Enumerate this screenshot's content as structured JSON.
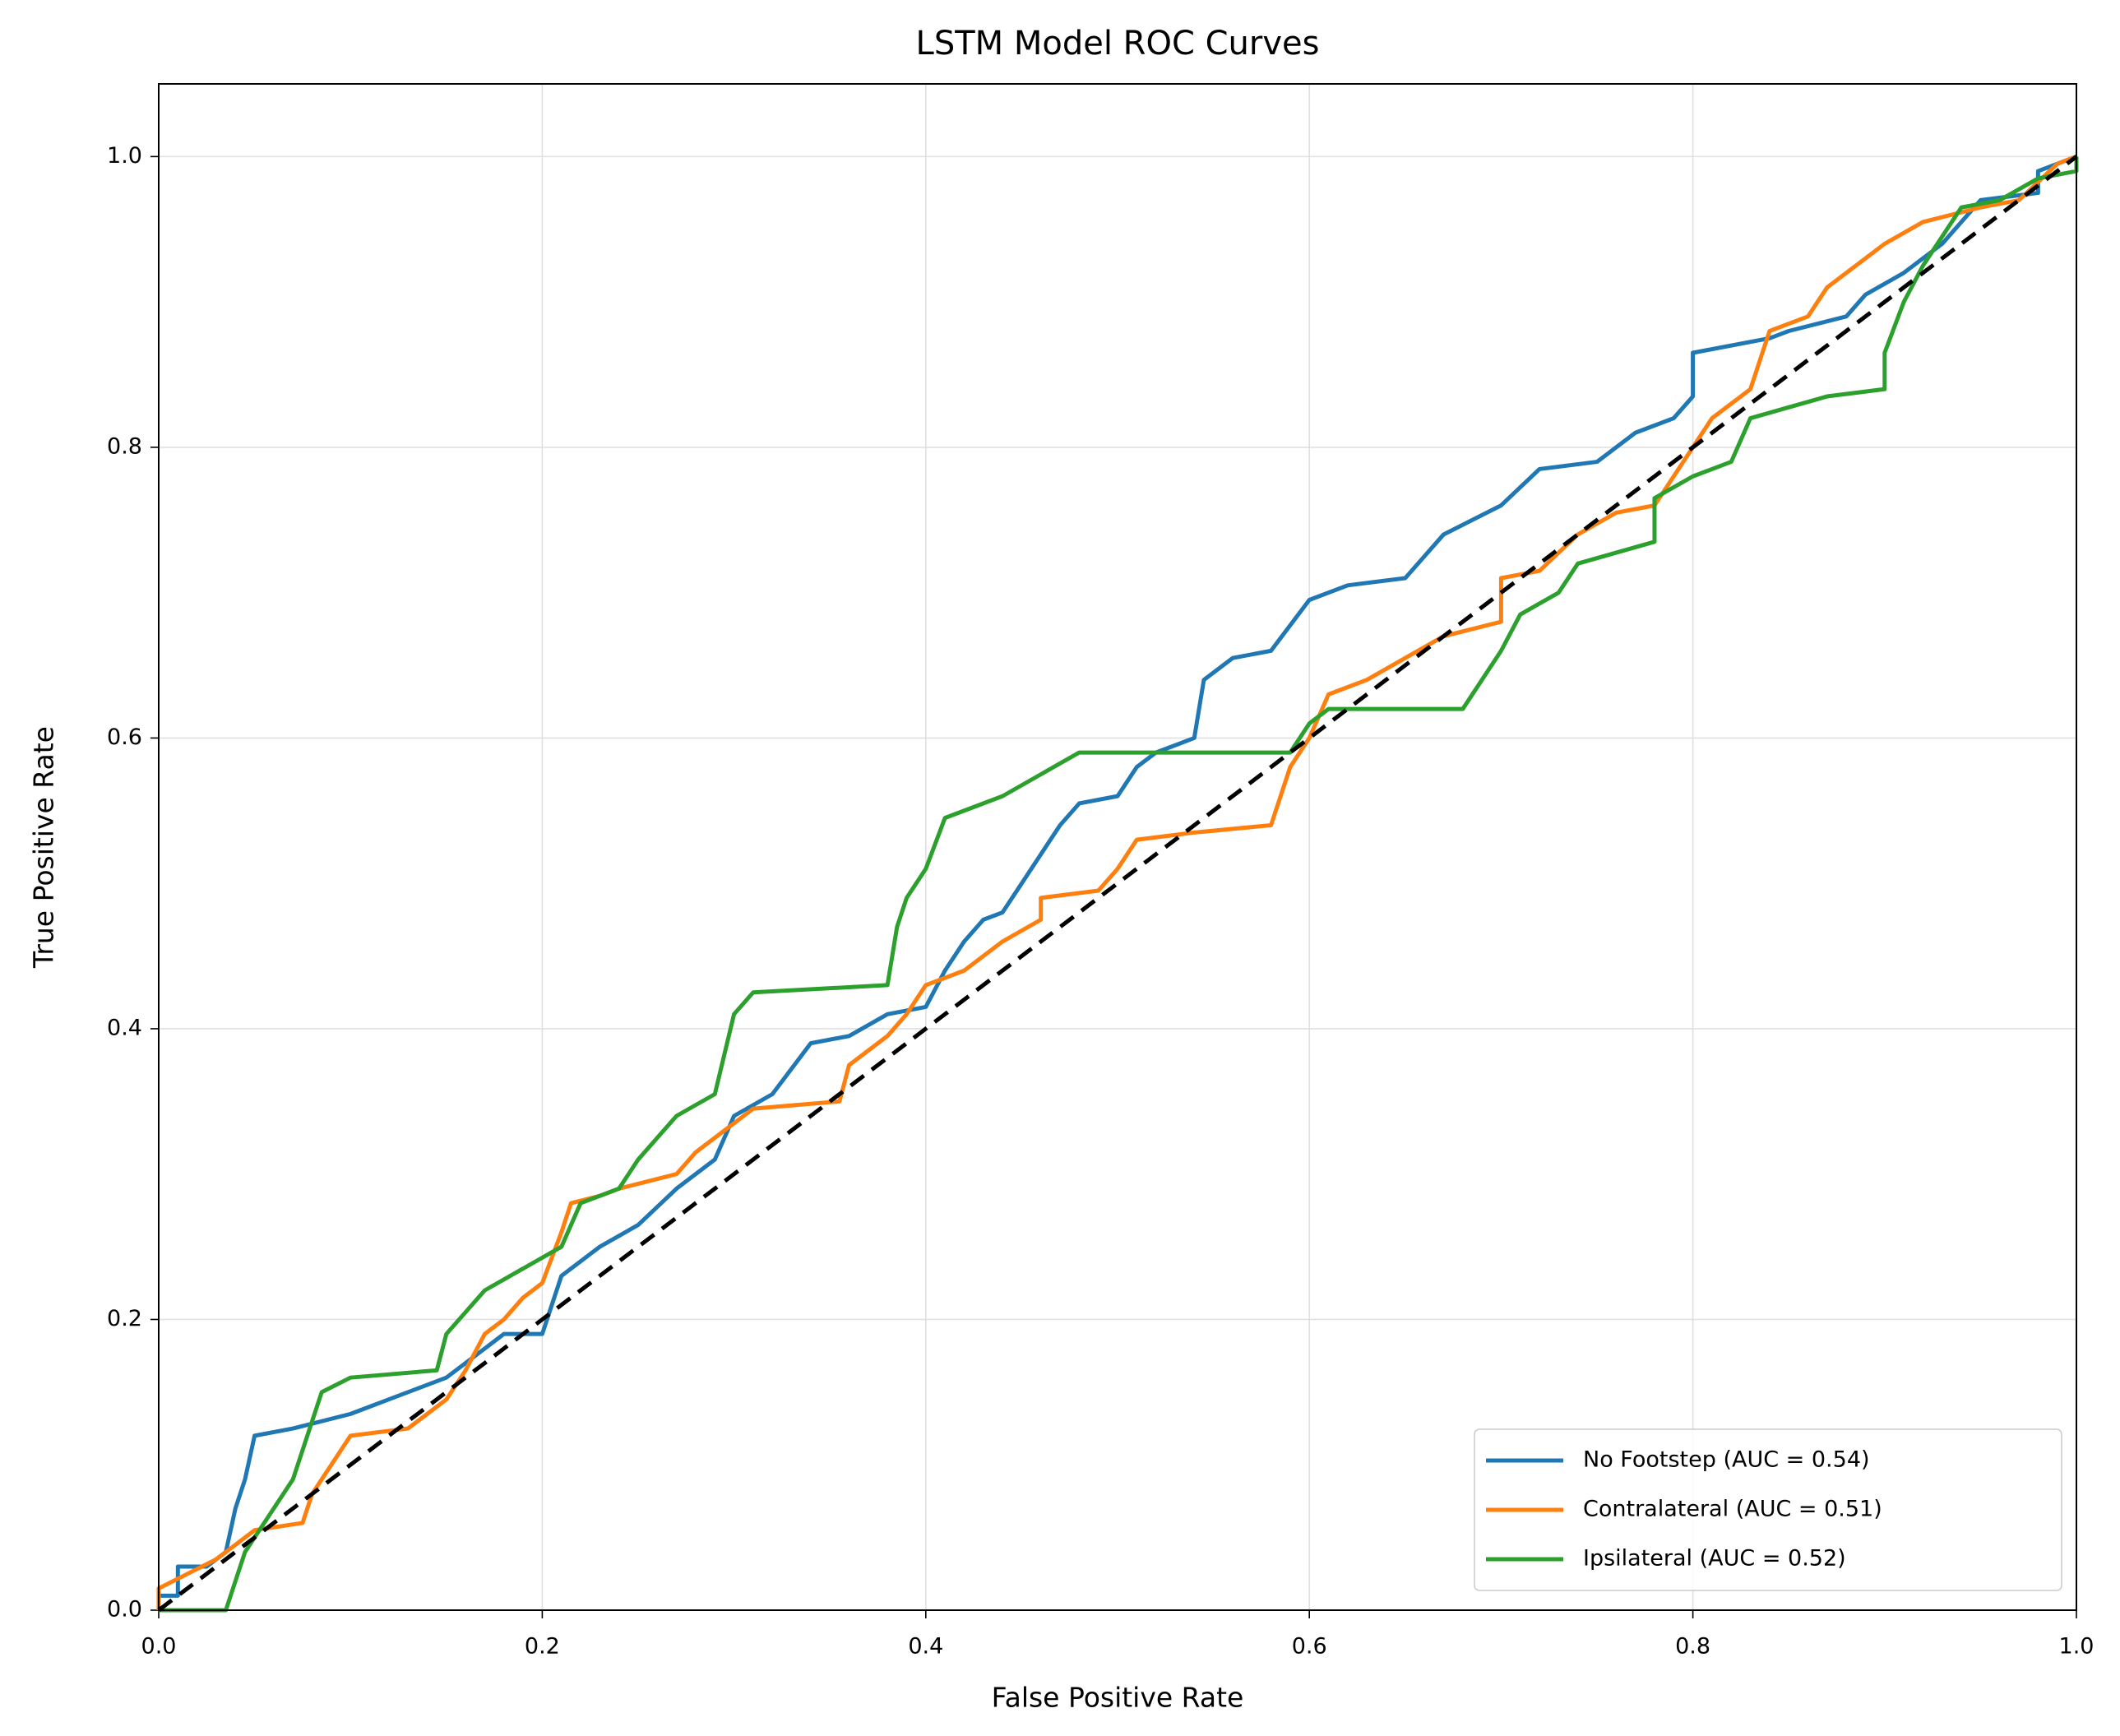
{
  "chart_data": {
    "type": "line",
    "title": "LSTM Model ROC Curves",
    "x_label": "False Positive Rate",
    "y_label": "True Positive Rate",
    "xlim": [
      0,
      1
    ],
    "ylim": [
      0,
      1.05
    ],
    "xticks": [
      {
        "value": 0,
        "label": "0.0"
      },
      0.2,
      0.4,
      0.6,
      0.8,
      {
        "value": 1,
        "label": "1.0"
      }
    ],
    "yticks": [
      {
        "value": 0,
        "label": "0.0"
      },
      0.2,
      0.4,
      0.6,
      0.8,
      {
        "value": 1,
        "label": "1.0"
      }
    ],
    "grid": true,
    "legend": "lower right",
    "series": [
      {
        "name": "No Footstep (AUC = 0.54)",
        "color": "#1f77b4",
        "x": [
          0,
          0,
          0.01,
          0.01,
          0.025,
          0.035,
          0.04,
          0.045,
          0.05,
          0.07,
          0.1,
          0.12,
          0.15,
          0.17,
          0.18,
          0.2,
          0.21,
          0.23,
          0.25,
          0.27,
          0.29,
          0.3,
          0.32,
          0.34,
          0.36,
          0.38,
          0.4,
          0.41,
          0.42,
          0.43,
          0.44,
          0.45,
          0.46,
          0.47,
          0.48,
          0.5,
          0.51,
          0.52,
          0.54,
          0.545,
          0.56,
          0.58,
          0.6,
          0.62,
          0.65,
          0.67,
          0.7,
          0.72,
          0.75,
          0.77,
          0.79,
          0.8,
          0.8,
          0.84,
          0.85,
          0.88,
          0.89,
          0.91,
          0.93,
          0.95,
          0.98,
          0.98,
          1
        ],
        "values": [
          0,
          0.01,
          0.01,
          0.03,
          0.03,
          0.04,
          0.07,
          0.09,
          0.12,
          0.125,
          0.135,
          0.145,
          0.16,
          0.18,
          0.19,
          0.19,
          0.23,
          0.25,
          0.265,
          0.29,
          0.31,
          0.34,
          0.355,
          0.39,
          0.395,
          0.41,
          0.415,
          0.44,
          0.46,
          0.475,
          0.48,
          0.5,
          0.52,
          0.54,
          0.555,
          0.56,
          0.58,
          0.59,
          0.6,
          0.64,
          0.655,
          0.66,
          0.695,
          0.705,
          0.71,
          0.74,
          0.76,
          0.785,
          0.79,
          0.81,
          0.82,
          0.835,
          0.865,
          0.875,
          0.88,
          0.89,
          0.905,
          0.92,
          0.94,
          0.97,
          0.975,
          0.99,
          1
        ]
      },
      {
        "name": "Contralateral (AUC = 0.51)",
        "color": "#ff7f0e",
        "x": [
          0,
          0,
          0.015,
          0.03,
          0.04,
          0.05,
          0.075,
          0.08,
          0.09,
          0.1,
          0.13,
          0.15,
          0.16,
          0.17,
          0.18,
          0.19,
          0.2,
          0.21,
          0.215,
          0.23,
          0.24,
          0.27,
          0.28,
          0.3,
          0.31,
          0.355,
          0.36,
          0.38,
          0.39,
          0.4,
          0.42,
          0.44,
          0.46,
          0.46,
          0.49,
          0.5,
          0.51,
          0.54,
          0.58,
          0.59,
          0.6,
          0.61,
          0.63,
          0.65,
          0.67,
          0.7,
          0.7,
          0.72,
          0.74,
          0.76,
          0.78,
          0.8,
          0.81,
          0.83,
          0.84,
          0.86,
          0.87,
          0.9,
          0.92,
          0.95,
          0.97,
          0.99,
          1
        ],
        "values": [
          0,
          0.015,
          0.025,
          0.035,
          0.045,
          0.055,
          0.06,
          0.08,
          0.1,
          0.12,
          0.125,
          0.145,
          0.165,
          0.19,
          0.2,
          0.215,
          0.225,
          0.26,
          0.28,
          0.285,
          0.29,
          0.3,
          0.315,
          0.335,
          0.345,
          0.35,
          0.375,
          0.395,
          0.41,
          0.43,
          0.44,
          0.46,
          0.475,
          0.49,
          0.495,
          0.51,
          0.53,
          0.535,
          0.54,
          0.58,
          0.6,
          0.63,
          0.64,
          0.655,
          0.67,
          0.68,
          0.71,
          0.715,
          0.74,
          0.755,
          0.76,
          0.8,
          0.82,
          0.84,
          0.88,
          0.89,
          0.91,
          0.94,
          0.955,
          0.965,
          0.97,
          0.995,
          1
        ]
      },
      {
        "name": "Ipsilateral (AUC = 0.52)",
        "color": "#2ca02c",
        "x": [
          0,
          0.035,
          0.04,
          0.045,
          0.06,
          0.07,
          0.08,
          0.085,
          0.1,
          0.145,
          0.15,
          0.16,
          0.17,
          0.19,
          0.21,
          0.22,
          0.24,
          0.25,
          0.27,
          0.29,
          0.3,
          0.31,
          0.38,
          0.385,
          0.39,
          0.4,
          0.41,
          0.44,
          0.46,
          0.48,
          0.59,
          0.6,
          0.61,
          0.68,
          0.69,
          0.7,
          0.71,
          0.73,
          0.74,
          0.78,
          0.78,
          0.8,
          0.82,
          0.83,
          0.87,
          0.9,
          0.9,
          0.91,
          0.92,
          0.94,
          0.96,
          0.98,
          1,
          1
        ],
        "values": [
          0,
          0,
          0.02,
          0.04,
          0.07,
          0.09,
          0.13,
          0.15,
          0.16,
          0.165,
          0.19,
          0.205,
          0.22,
          0.235,
          0.25,
          0.28,
          0.29,
          0.31,
          0.34,
          0.355,
          0.41,
          0.425,
          0.43,
          0.47,
          0.49,
          0.51,
          0.545,
          0.56,
          0.575,
          0.59,
          0.59,
          0.61,
          0.62,
          0.62,
          0.64,
          0.66,
          0.685,
          0.7,
          0.72,
          0.735,
          0.765,
          0.78,
          0.79,
          0.82,
          0.835,
          0.84,
          0.865,
          0.9,
          0.925,
          0.965,
          0.97,
          0.985,
          0.99,
          1
        ]
      }
    ],
    "diagonal": {
      "color": "#000000",
      "x": [
        0,
        1
      ],
      "values": [
        0,
        1
      ]
    }
  }
}
